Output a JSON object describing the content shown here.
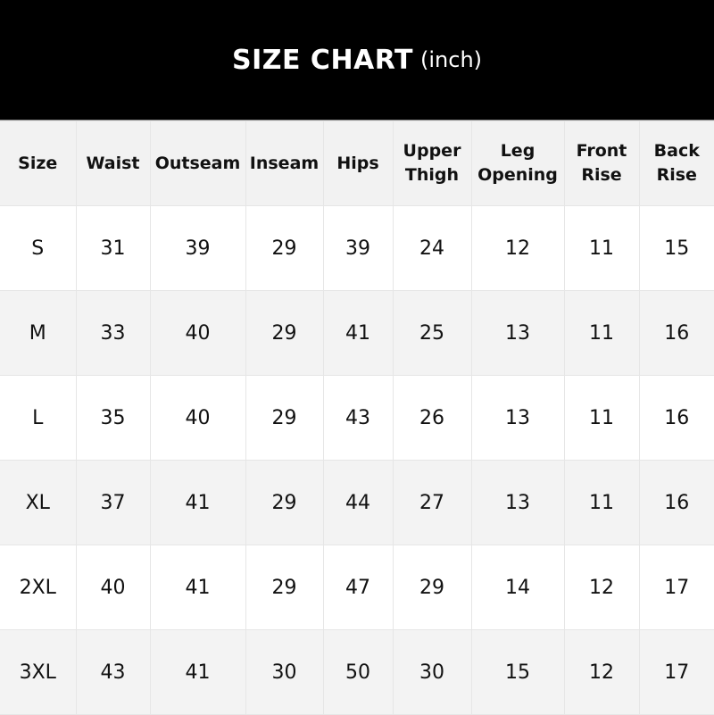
{
  "title": {
    "main": "SIZE CHART",
    "unit": "(inch)"
  },
  "headers": [
    [
      "Size"
    ],
    [
      "Waist"
    ],
    [
      "Outseam"
    ],
    [
      "Inseam"
    ],
    [
      "Hips"
    ],
    [
      "Upper",
      "Thigh"
    ],
    [
      "Leg",
      "Opening"
    ],
    [
      "Front",
      "Rise"
    ],
    [
      "Back",
      "Rise"
    ]
  ],
  "rows": [
    [
      "S",
      "31",
      "39",
      "29",
      "39",
      "24",
      "12",
      "11",
      "15"
    ],
    [
      "M",
      "33",
      "40",
      "29",
      "41",
      "25",
      "13",
      "11",
      "16"
    ],
    [
      "L",
      "35",
      "40",
      "29",
      "43",
      "26",
      "13",
      "11",
      "16"
    ],
    [
      "XL",
      "37",
      "41",
      "29",
      "44",
      "27",
      "13",
      "11",
      "16"
    ],
    [
      "2XL",
      "40",
      "41",
      "29",
      "47",
      "29",
      "14",
      "12",
      "17"
    ],
    [
      "3XL",
      "43",
      "41",
      "30",
      "50",
      "30",
      "15",
      "12",
      "17"
    ]
  ],
  "colors": {
    "banner": "#000000",
    "header_bg": "#f2f2f2",
    "alt_row_bg": "#f3f3f3",
    "border": "#e6e6e6"
  }
}
